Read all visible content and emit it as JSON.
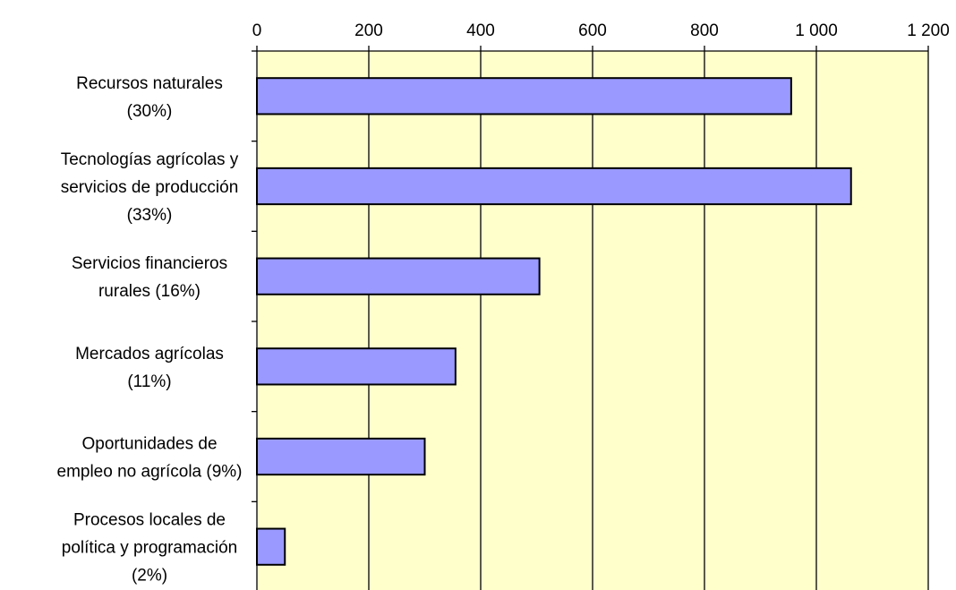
{
  "chart_data": {
    "type": "bar",
    "orientation": "horizontal",
    "x_axis_position": "top",
    "title": "",
    "xlabel": "",
    "ylabel": "",
    "xlim": [
      0,
      1200
    ],
    "xticks": [
      0,
      200,
      400,
      600,
      800,
      1000,
      1200
    ],
    "xtick_labels": [
      "0",
      "200",
      "400",
      "600",
      "800",
      "1 000",
      "1 200"
    ],
    "grid": "vertical",
    "plot_background": "#ffffcc",
    "bar_color": "#9999ff",
    "categories": [
      [
        "Recursos naturales",
        "(30%)"
      ],
      [
        "Tecnologías agrícolas y",
        "servicios de producción",
        "(33%)"
      ],
      [
        "Servicios financieros",
        "rurales (16%)"
      ],
      [
        "Mercados agrícolas",
        "(11%)"
      ],
      [
        "Oportunidades de",
        "empleo no agrícola (9%)"
      ],
      [
        "Procesos locales de",
        "política y programación",
        "(2%)"
      ]
    ],
    "values": [
      955,
      1062,
      505,
      355,
      300,
      50
    ]
  }
}
